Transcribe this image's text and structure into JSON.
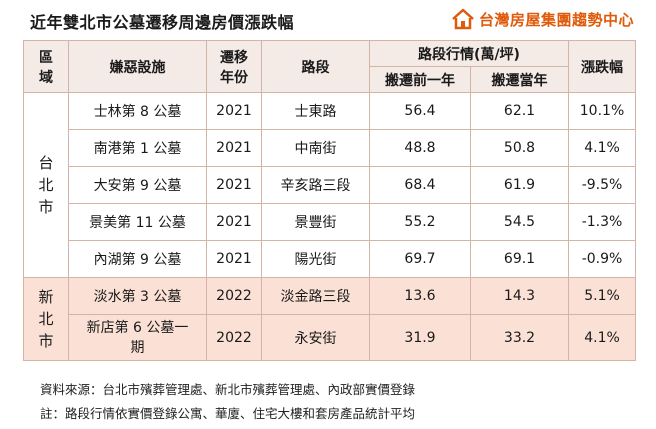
{
  "title": "近年雙北市公墓遷移周邊房價漲跌幅",
  "brand": {
    "name": "台灣房屋集團趨勢中心",
    "accent": "#e05a0c"
  },
  "headers": {
    "region": "區域",
    "facility": "嫌惡設施",
    "year": "遷移年份",
    "road": "路段",
    "price": "路段行情(萬/坪)",
    "price_before": "搬遷前一年",
    "price_current": "搬遷當年",
    "change": "漲跌幅"
  },
  "groups": [
    {
      "region": "台北市",
      "rows": [
        {
          "facility": "士林第 8 公墓",
          "year": "2021",
          "road": "士東路",
          "before": "56.4",
          "current": "62.1",
          "change": "10.1%"
        },
        {
          "facility": "南港第 1 公墓",
          "year": "2021",
          "road": "中南街",
          "before": "48.8",
          "current": "50.8",
          "change": "4.1%"
        },
        {
          "facility": "大安第 9 公墓",
          "year": "2021",
          "road": "辛亥路三段",
          "before": "68.4",
          "current": "61.9",
          "change": "-9.5%"
        },
        {
          "facility": "景美第 11 公墓",
          "year": "2021",
          "road": "景豐街",
          "before": "55.2",
          "current": "54.5",
          "change": "-1.3%"
        },
        {
          "facility": "內湖第 9 公墓",
          "year": "2021",
          "road": "陽光街",
          "before": "69.7",
          "current": "69.1",
          "change": "-0.9%"
        }
      ]
    },
    {
      "region": "新北市",
      "rows": [
        {
          "facility": "淡水第 3 公墓",
          "year": "2022",
          "road": "淡金路三段",
          "before": "13.6",
          "current": "14.3",
          "change": "5.1%"
        },
        {
          "facility": "新店第 6 公墓一期",
          "year": "2022",
          "road": "永安街",
          "before": "31.9",
          "current": "33.2",
          "change": "4.1%"
        }
      ]
    }
  ],
  "notes": {
    "source": "資料來源：台北市殯葬管理處、新北市殯葬管理處、內政部實價登錄",
    "remark": "註：路段行情依實價登錄公寓、華廈、住宅大樓和套房產品統計平均"
  }
}
